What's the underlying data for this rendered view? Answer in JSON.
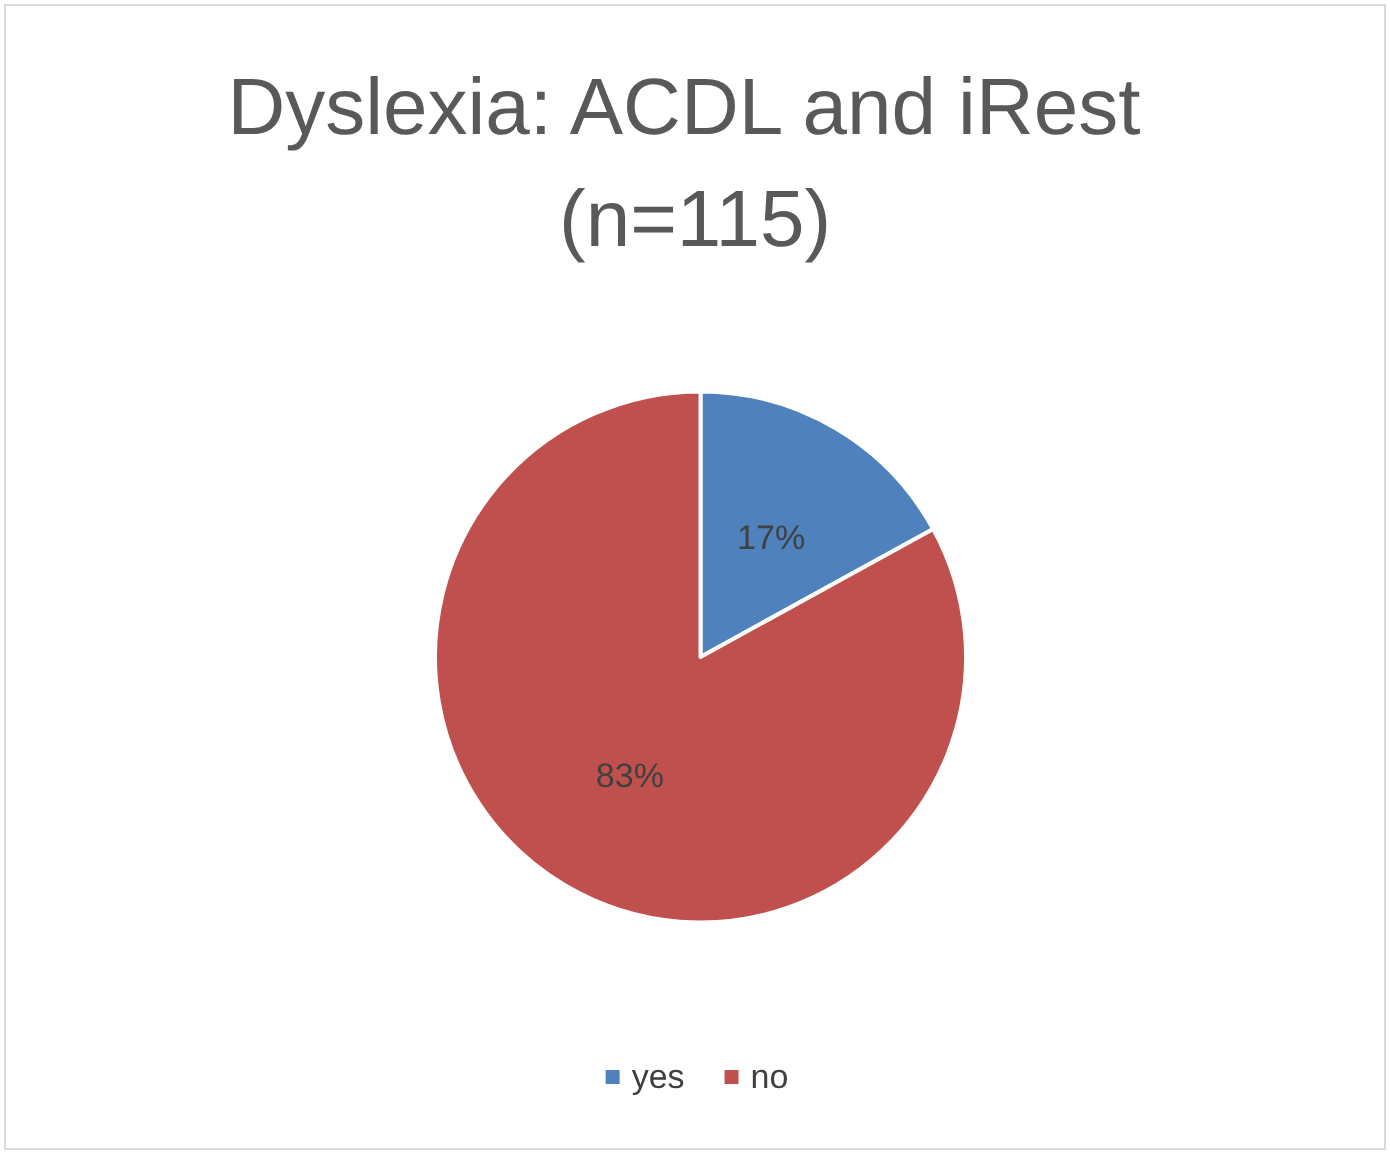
{
  "chart_data": {
    "type": "pie",
    "title": "Dyslexia: ACDL and iRest (n=115)",
    "categories": [
      "yes",
      "no"
    ],
    "values": [
      17,
      83
    ],
    "colors": [
      "#4f81bd",
      "#c0504d"
    ],
    "value_labels": [
      "17%",
      "83%"
    ],
    "legend": "bottom"
  }
}
